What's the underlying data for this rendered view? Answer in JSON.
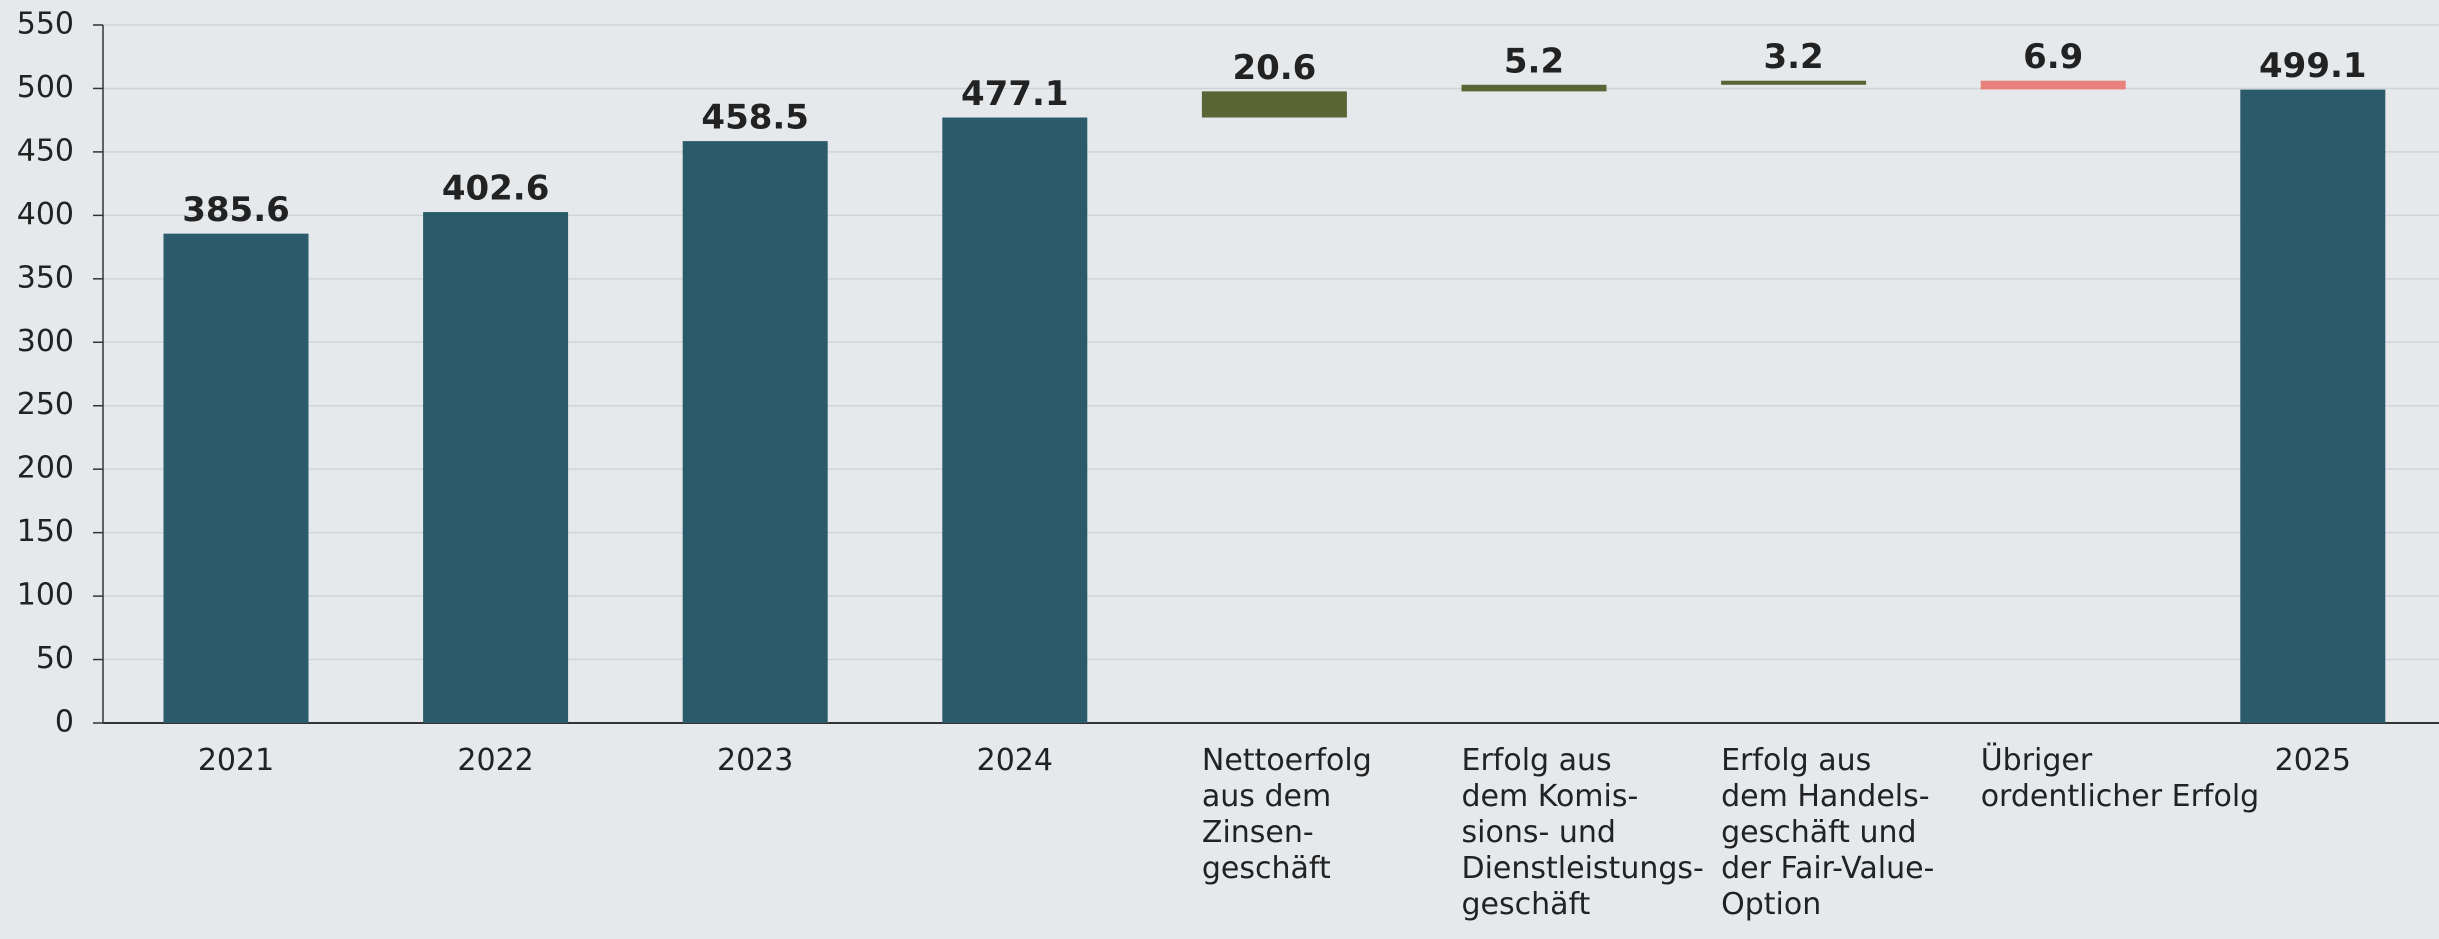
{
  "chart_data": {
    "type": "waterfall",
    "categories": [
      "2021",
      "2022",
      "2023",
      "2024",
      "Nettoerfolg\naus dem\nZinsen-\ngeschäft",
      "Erfolg aus\ndem Komis-\nsions- und\nDienstleistungs-\ngeschäft",
      "Erfolg aus\ndem Handels-\ngeschäft und\nder Fair-Value-\nOption",
      "Übriger\nordentlicher Erfolg",
      "2025"
    ],
    "values": [
      385.6,
      402.6,
      458.5,
      477.1,
      20.6,
      5.2,
      3.2,
      -6.9,
      499.1
    ],
    "value_labels": [
      "385.6",
      "402.6",
      "458.5",
      "477.1",
      "20.6",
      "5.2",
      "3.2",
      "6.9",
      "499.1"
    ],
    "totals": [
      true,
      true,
      true,
      true,
      false,
      false,
      false,
      false,
      true
    ],
    "colors": {
      "total": "#2b5a6b",
      "increase": "#5a6535",
      "decrease": "#e8807c"
    },
    "ylim": [
      0,
      550
    ],
    "yticks": [
      0,
      50,
      100,
      150,
      200,
      250,
      300,
      350,
      400,
      450,
      500,
      550
    ],
    "grid": true
  }
}
